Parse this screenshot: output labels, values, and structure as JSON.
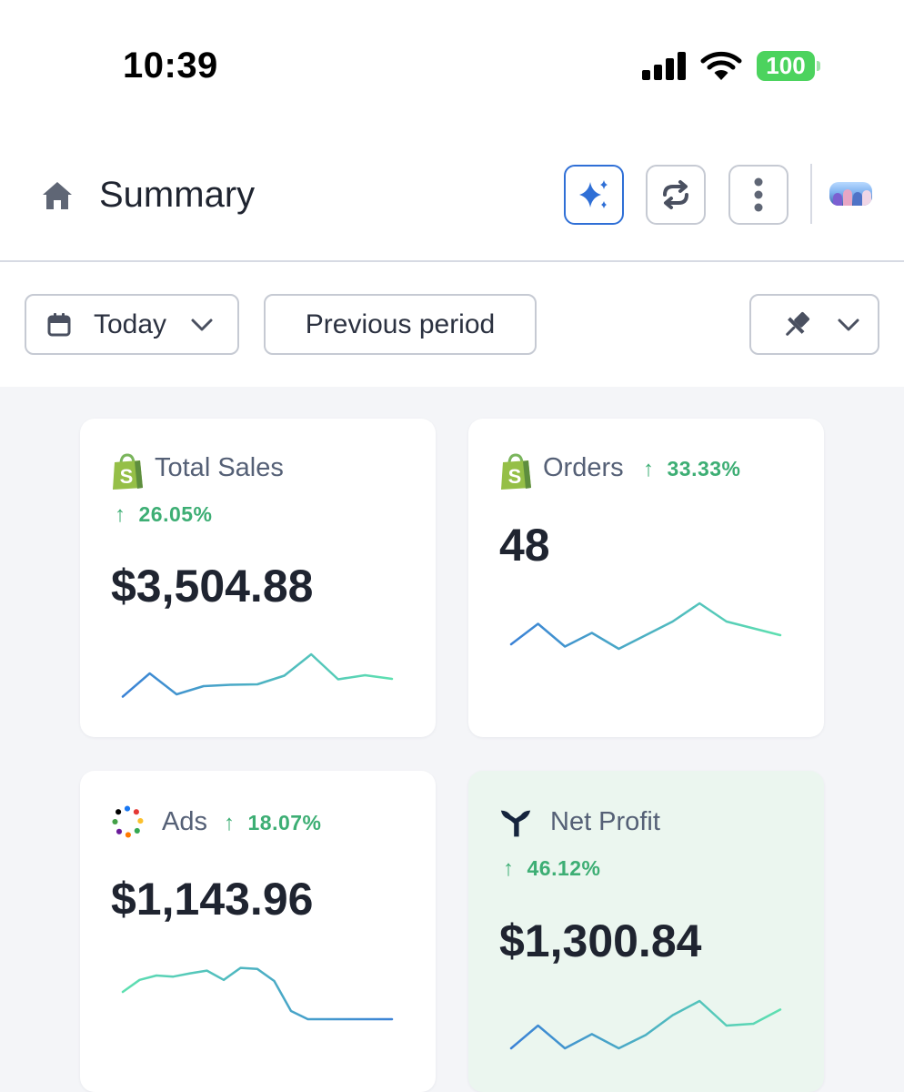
{
  "status_bar": {
    "time": "10:39",
    "battery": "100"
  },
  "header": {
    "title": "Summary",
    "icons": [
      "home-icon",
      "sparkle-icon",
      "refresh-icon",
      "more-vertical-icon",
      "avatar"
    ]
  },
  "filters": {
    "date_label": "Today",
    "compare_label": "Previous period",
    "icons": [
      "calendar-icon",
      "chevron-down-icon",
      "pin-icon"
    ]
  },
  "colors": {
    "accent": "#2f6fd6",
    "positive": "#3dae74",
    "spark_start": "#3b82d6",
    "spark_end": "#5ee0b0",
    "highlight_card": "#ebf6ef"
  },
  "cards": [
    {
      "title": "Total Sales",
      "change": "26.05%",
      "value": "$3,504.88",
      "source_icon": "shopify-icon",
      "trend": [
        5,
        56,
        10,
        28,
        31,
        32,
        51,
        98,
        43,
        52,
        44
      ]
    },
    {
      "title": "Orders",
      "change": "33.33%",
      "value": "48",
      "source_icon": "shopify-icon",
      "trend": [
        10,
        55,
        5,
        35,
        0,
        30,
        60,
        100,
        60,
        45,
        30
      ]
    },
    {
      "title": "Ads",
      "change": "18.07%",
      "value": "$1,143.96",
      "source_icon": "multi-channel-icon",
      "trend": [
        50,
        72,
        80,
        78,
        84,
        89,
        72,
        94,
        92,
        70,
        15,
        0,
        0,
        0,
        0,
        0,
        0
      ]
    },
    {
      "title": "Net Profit",
      "change": "46.12%",
      "value": "$1,300.84",
      "source_icon": "triple-whale-icon",
      "trend": [
        0,
        48,
        0,
        30,
        0,
        28,
        70,
        100,
        48,
        52,
        82
      ]
    }
  ]
}
